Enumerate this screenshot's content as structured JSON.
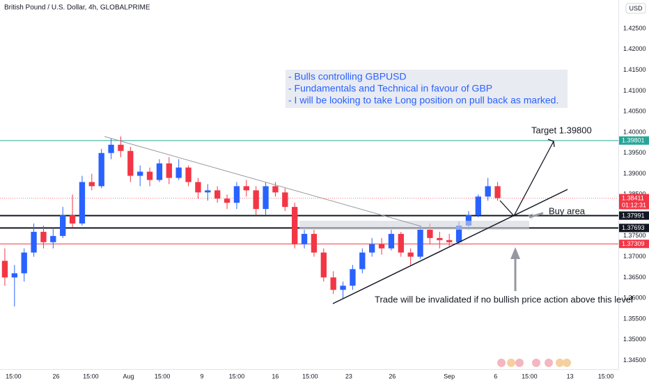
{
  "chart_data": {
    "type": "candlestick",
    "title": "British Pound / U.S. Dollar, 4h, GLOBALPRIME",
    "currency": "USD",
    "up_color": "#2962ff",
    "down_color": "#f23645",
    "grid": false,
    "xlim": [
      -0.5,
      63.5
    ],
    "ylim": [
      1.3429,
      1.4319
    ],
    "xticks": [
      {
        "value": 0.9,
        "label": "15:00"
      },
      {
        "value": 5.3,
        "label": "26"
      },
      {
        "value": 8.9,
        "label": "15:00"
      },
      {
        "value": 12.8,
        "label": "Aug"
      },
      {
        "value": 16.3,
        "label": "15:00"
      },
      {
        "value": 20.4,
        "label": "9"
      },
      {
        "value": 24,
        "label": "15:00"
      },
      {
        "value": 28,
        "label": "16"
      },
      {
        "value": 31.6,
        "label": "15:00"
      },
      {
        "value": 35.6,
        "label": "23"
      },
      {
        "value": 40.1,
        "label": "26"
      },
      {
        "value": 46,
        "label": "Sep"
      },
      {
        "value": 50.8,
        "label": "6"
      },
      {
        "value": 54.3,
        "label": "15:00"
      },
      {
        "value": 58.5,
        "label": "13"
      },
      {
        "value": 62.2,
        "label": "15:00"
      }
    ],
    "yticks": [
      {
        "value": 1.425,
        "label": "1.42500"
      },
      {
        "value": 1.42,
        "label": "1.42000"
      },
      {
        "value": 1.415,
        "label": "1.41500"
      },
      {
        "value": 1.41,
        "label": "1.41000"
      },
      {
        "value": 1.405,
        "label": "1.40500"
      },
      {
        "value": 1.4,
        "label": "1.40000"
      },
      {
        "value": 1.395,
        "label": "1.39500"
      },
      {
        "value": 1.39,
        "label": "1.39000"
      },
      {
        "value": 1.385,
        "label": "1.38500"
      },
      {
        "value": 1.375,
        "label": "1.37500"
      },
      {
        "value": 1.37,
        "label": "1.37000"
      },
      {
        "value": 1.365,
        "label": "1.36500"
      },
      {
        "value": 1.36,
        "label": "1.36000"
      },
      {
        "value": 1.355,
        "label": "1.35500"
      },
      {
        "value": 1.35,
        "label": "1.35000"
      },
      {
        "value": 1.345,
        "label": "1.34500"
      }
    ],
    "x": [
      0,
      1,
      2,
      3,
      4,
      5,
      6,
      7,
      8,
      9,
      10,
      11,
      12,
      13,
      14,
      15,
      16,
      17,
      18,
      19,
      20,
      21,
      22,
      23,
      24,
      25,
      26,
      27,
      28,
      29,
      30,
      31,
      32,
      33,
      34,
      35,
      36,
      37,
      38,
      39,
      40,
      41,
      42,
      43,
      44,
      45,
      46,
      47,
      48,
      49,
      50,
      51
    ],
    "open": [
      1.369,
      1.365,
      1.366,
      1.371,
      1.376,
      1.3735,
      1.375,
      1.38,
      1.378,
      1.388,
      1.387,
      1.395,
      1.397,
      1.3955,
      1.3895,
      1.3905,
      1.3885,
      1.3925,
      1.389,
      1.3915,
      1.388,
      1.3855,
      1.386,
      1.384,
      1.383,
      1.387,
      1.386,
      1.3815,
      1.387,
      1.3855,
      1.382,
      1.373,
      1.3755,
      1.371,
      1.365,
      1.362,
      1.363,
      1.367,
      1.371,
      1.373,
      1.372,
      1.3755,
      1.371,
      1.37,
      1.3765,
      1.3745,
      1.374,
      1.3735,
      1.3775,
      1.38,
      1.3845,
      1.387
    ],
    "high": [
      1.372,
      1.368,
      1.372,
      1.378,
      1.3775,
      1.377,
      1.382,
      1.385,
      1.3895,
      1.39,
      1.396,
      1.3985,
      1.399,
      1.3965,
      1.392,
      1.3915,
      1.3935,
      1.394,
      1.3935,
      1.392,
      1.389,
      1.3875,
      1.387,
      1.385,
      1.388,
      1.3885,
      1.387,
      1.388,
      1.388,
      1.3865,
      1.383,
      1.3765,
      1.3765,
      1.372,
      1.3665,
      1.364,
      1.368,
      1.372,
      1.3745,
      1.3745,
      1.3765,
      1.376,
      1.372,
      1.3775,
      1.378,
      1.376,
      1.3755,
      1.3785,
      1.381,
      1.385,
      1.389,
      1.388
    ],
    "low": [
      1.363,
      1.358,
      1.364,
      1.37,
      1.372,
      1.372,
      1.3745,
      1.377,
      1.3775,
      1.386,
      1.3865,
      1.3935,
      1.394,
      1.388,
      1.387,
      1.387,
      1.388,
      1.3875,
      1.3885,
      1.387,
      1.384,
      1.3835,
      1.383,
      1.3815,
      1.3815,
      1.3845,
      1.38,
      1.38,
      1.3845,
      1.381,
      1.372,
      1.372,
      1.37,
      1.364,
      1.361,
      1.36,
      1.362,
      1.366,
      1.37,
      1.3705,
      1.3715,
      1.37,
      1.368,
      1.3695,
      1.373,
      1.372,
      1.3725,
      1.373,
      1.3765,
      1.3795,
      1.3835,
      1.3835
    ],
    "close": [
      1.365,
      1.366,
      1.371,
      1.376,
      1.3735,
      1.375,
      1.38,
      1.378,
      1.388,
      1.387,
      1.395,
      1.397,
      1.3955,
      1.3895,
      1.3905,
      1.3885,
      1.3925,
      1.389,
      1.3915,
      1.388,
      1.3855,
      1.386,
      1.384,
      1.383,
      1.387,
      1.386,
      1.3815,
      1.387,
      1.3855,
      1.382,
      1.373,
      1.3755,
      1.371,
      1.365,
      1.362,
      1.363,
      1.367,
      1.371,
      1.373,
      1.372,
      1.3755,
      1.371,
      1.37,
      1.3765,
      1.3745,
      1.374,
      1.3735,
      1.3775,
      1.38,
      1.3845,
      1.387,
      1.38411
    ],
    "levels": [
      {
        "value": 1.39801,
        "color": "#26a69a",
        "width": 1
      },
      {
        "value": 1.37991,
        "color": "#131722",
        "width": 2
      },
      {
        "value": 1.37693,
        "color": "#131722",
        "width": 2
      },
      {
        "value": 1.37309,
        "color": "#f23645",
        "width": 1
      }
    ],
    "last_price": {
      "value": 1.38411,
      "countdown": "01:12:31",
      "color": "#f23645"
    },
    "note_lines": [
      "- Bulls controlling GBPUSD",
      "- Fundamentals and Technical in favour of GBP",
      "- I will be looking to take Long position on pull back as marked."
    ],
    "target_text": "Target 1.39800",
    "buy_area_text": "Buy area",
    "invalidation_text": "Trade will be invalidated if no bullish price action above this level"
  }
}
